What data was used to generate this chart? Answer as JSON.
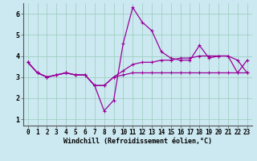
{
  "title": "",
  "xlabel": "Windchill (Refroidissement éolien,°C)",
  "ylabel": "",
  "background_color": "#cce8f0",
  "grid_color": "#99ccbb",
  "line_color": "#990099",
  "xlim": [
    -0.5,
    23.5
  ],
  "ylim": [
    0.7,
    6.5
  ],
  "xticks": [
    0,
    1,
    2,
    3,
    4,
    5,
    6,
    7,
    8,
    9,
    10,
    11,
    12,
    13,
    14,
    15,
    16,
    17,
    18,
    19,
    20,
    21,
    22,
    23
  ],
  "yticks": [
    1,
    2,
    3,
    4,
    5,
    6
  ],
  "series": [
    [
      3.7,
      3.2,
      3.0,
      3.1,
      3.2,
      3.1,
      3.1,
      2.6,
      1.4,
      1.9,
      4.6,
      6.3,
      5.6,
      5.2,
      4.2,
      3.9,
      3.8,
      3.8,
      4.5,
      3.9,
      4.0,
      4.0,
      3.2,
      3.8
    ],
    [
      3.7,
      3.2,
      3.0,
      3.1,
      3.2,
      3.1,
      3.1,
      2.6,
      2.6,
      3.0,
      3.3,
      3.6,
      3.7,
      3.7,
      3.8,
      3.8,
      3.9,
      3.9,
      4.0,
      4.0,
      4.0,
      4.0,
      3.8,
      3.2
    ],
    [
      3.7,
      3.2,
      3.0,
      3.1,
      3.2,
      3.1,
      3.1,
      2.6,
      2.6,
      3.0,
      3.1,
      3.2,
      3.2,
      3.2,
      3.2,
      3.2,
      3.2,
      3.2,
      3.2,
      3.2,
      3.2,
      3.2,
      3.2,
      3.2
    ]
  ],
  "tick_fontsize": 5.5,
  "xlabel_fontsize": 6.0,
  "linewidth": 0.9,
  "marker_size": 2.5
}
